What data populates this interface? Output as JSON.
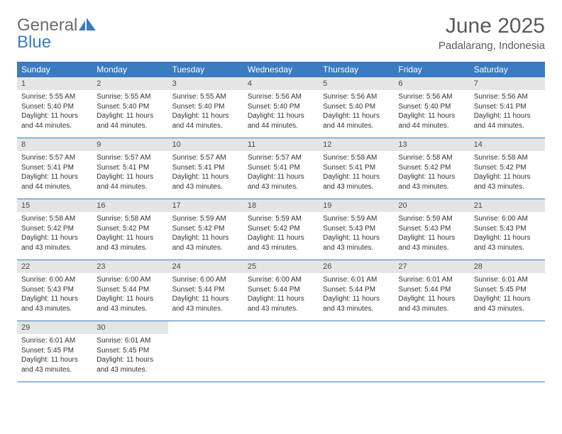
{
  "logo": {
    "general": "General",
    "blue": "Blue"
  },
  "title": "June 2025",
  "location": "Padalarang, Indonesia",
  "colors": {
    "header_bg": "#3b7bbf",
    "header_text": "#ffffff",
    "daynum_bg": "#e5e5e5",
    "daynum_text": "#4a4a4a",
    "body_text": "#333333",
    "divider": "#3b7bbf",
    "title_text": "#5a5a5a",
    "logo_gray": "#6b6b6b",
    "logo_blue": "#3b7bbf"
  },
  "day_headers": [
    "Sunday",
    "Monday",
    "Tuesday",
    "Wednesday",
    "Thursday",
    "Friday",
    "Saturday"
  ],
  "weeks": [
    [
      {
        "n": "1",
        "sr": "Sunrise: 5:55 AM",
        "ss": "Sunset: 5:40 PM",
        "d1": "Daylight: 11 hours",
        "d2": "and 44 minutes."
      },
      {
        "n": "2",
        "sr": "Sunrise: 5:55 AM",
        "ss": "Sunset: 5:40 PM",
        "d1": "Daylight: 11 hours",
        "d2": "and 44 minutes."
      },
      {
        "n": "3",
        "sr": "Sunrise: 5:55 AM",
        "ss": "Sunset: 5:40 PM",
        "d1": "Daylight: 11 hours",
        "d2": "and 44 minutes."
      },
      {
        "n": "4",
        "sr": "Sunrise: 5:56 AM",
        "ss": "Sunset: 5:40 PM",
        "d1": "Daylight: 11 hours",
        "d2": "and 44 minutes."
      },
      {
        "n": "5",
        "sr": "Sunrise: 5:56 AM",
        "ss": "Sunset: 5:40 PM",
        "d1": "Daylight: 11 hours",
        "d2": "and 44 minutes."
      },
      {
        "n": "6",
        "sr": "Sunrise: 5:56 AM",
        "ss": "Sunset: 5:40 PM",
        "d1": "Daylight: 11 hours",
        "d2": "and 44 minutes."
      },
      {
        "n": "7",
        "sr": "Sunrise: 5:56 AM",
        "ss": "Sunset: 5:41 PM",
        "d1": "Daylight: 11 hours",
        "d2": "and 44 minutes."
      }
    ],
    [
      {
        "n": "8",
        "sr": "Sunrise: 5:57 AM",
        "ss": "Sunset: 5:41 PM",
        "d1": "Daylight: 11 hours",
        "d2": "and 44 minutes."
      },
      {
        "n": "9",
        "sr": "Sunrise: 5:57 AM",
        "ss": "Sunset: 5:41 PM",
        "d1": "Daylight: 11 hours",
        "d2": "and 44 minutes."
      },
      {
        "n": "10",
        "sr": "Sunrise: 5:57 AM",
        "ss": "Sunset: 5:41 PM",
        "d1": "Daylight: 11 hours",
        "d2": "and 43 minutes."
      },
      {
        "n": "11",
        "sr": "Sunrise: 5:57 AM",
        "ss": "Sunset: 5:41 PM",
        "d1": "Daylight: 11 hours",
        "d2": "and 43 minutes."
      },
      {
        "n": "12",
        "sr": "Sunrise: 5:58 AM",
        "ss": "Sunset: 5:41 PM",
        "d1": "Daylight: 11 hours",
        "d2": "and 43 minutes."
      },
      {
        "n": "13",
        "sr": "Sunrise: 5:58 AM",
        "ss": "Sunset: 5:42 PM",
        "d1": "Daylight: 11 hours",
        "d2": "and 43 minutes."
      },
      {
        "n": "14",
        "sr": "Sunrise: 5:58 AM",
        "ss": "Sunset: 5:42 PM",
        "d1": "Daylight: 11 hours",
        "d2": "and 43 minutes."
      }
    ],
    [
      {
        "n": "15",
        "sr": "Sunrise: 5:58 AM",
        "ss": "Sunset: 5:42 PM",
        "d1": "Daylight: 11 hours",
        "d2": "and 43 minutes."
      },
      {
        "n": "16",
        "sr": "Sunrise: 5:58 AM",
        "ss": "Sunset: 5:42 PM",
        "d1": "Daylight: 11 hours",
        "d2": "and 43 minutes."
      },
      {
        "n": "17",
        "sr": "Sunrise: 5:59 AM",
        "ss": "Sunset: 5:42 PM",
        "d1": "Daylight: 11 hours",
        "d2": "and 43 minutes."
      },
      {
        "n": "18",
        "sr": "Sunrise: 5:59 AM",
        "ss": "Sunset: 5:42 PM",
        "d1": "Daylight: 11 hours",
        "d2": "and 43 minutes."
      },
      {
        "n": "19",
        "sr": "Sunrise: 5:59 AM",
        "ss": "Sunset: 5:43 PM",
        "d1": "Daylight: 11 hours",
        "d2": "and 43 minutes."
      },
      {
        "n": "20",
        "sr": "Sunrise: 5:59 AM",
        "ss": "Sunset: 5:43 PM",
        "d1": "Daylight: 11 hours",
        "d2": "and 43 minutes."
      },
      {
        "n": "21",
        "sr": "Sunrise: 6:00 AM",
        "ss": "Sunset: 5:43 PM",
        "d1": "Daylight: 11 hours",
        "d2": "and 43 minutes."
      }
    ],
    [
      {
        "n": "22",
        "sr": "Sunrise: 6:00 AM",
        "ss": "Sunset: 5:43 PM",
        "d1": "Daylight: 11 hours",
        "d2": "and 43 minutes."
      },
      {
        "n": "23",
        "sr": "Sunrise: 6:00 AM",
        "ss": "Sunset: 5:44 PM",
        "d1": "Daylight: 11 hours",
        "d2": "and 43 minutes."
      },
      {
        "n": "24",
        "sr": "Sunrise: 6:00 AM",
        "ss": "Sunset: 5:44 PM",
        "d1": "Daylight: 11 hours",
        "d2": "and 43 minutes."
      },
      {
        "n": "25",
        "sr": "Sunrise: 6:00 AM",
        "ss": "Sunset: 5:44 PM",
        "d1": "Daylight: 11 hours",
        "d2": "and 43 minutes."
      },
      {
        "n": "26",
        "sr": "Sunrise: 6:01 AM",
        "ss": "Sunset: 5:44 PM",
        "d1": "Daylight: 11 hours",
        "d2": "and 43 minutes."
      },
      {
        "n": "27",
        "sr": "Sunrise: 6:01 AM",
        "ss": "Sunset: 5:44 PM",
        "d1": "Daylight: 11 hours",
        "d2": "and 43 minutes."
      },
      {
        "n": "28",
        "sr": "Sunrise: 6:01 AM",
        "ss": "Sunset: 5:45 PM",
        "d1": "Daylight: 11 hours",
        "d2": "and 43 minutes."
      }
    ],
    [
      {
        "n": "29",
        "sr": "Sunrise: 6:01 AM",
        "ss": "Sunset: 5:45 PM",
        "d1": "Daylight: 11 hours",
        "d2": "and 43 minutes."
      },
      {
        "n": "30",
        "sr": "Sunrise: 6:01 AM",
        "ss": "Sunset: 5:45 PM",
        "d1": "Daylight: 11 hours",
        "d2": "and 43 minutes."
      },
      null,
      null,
      null,
      null,
      null
    ]
  ]
}
